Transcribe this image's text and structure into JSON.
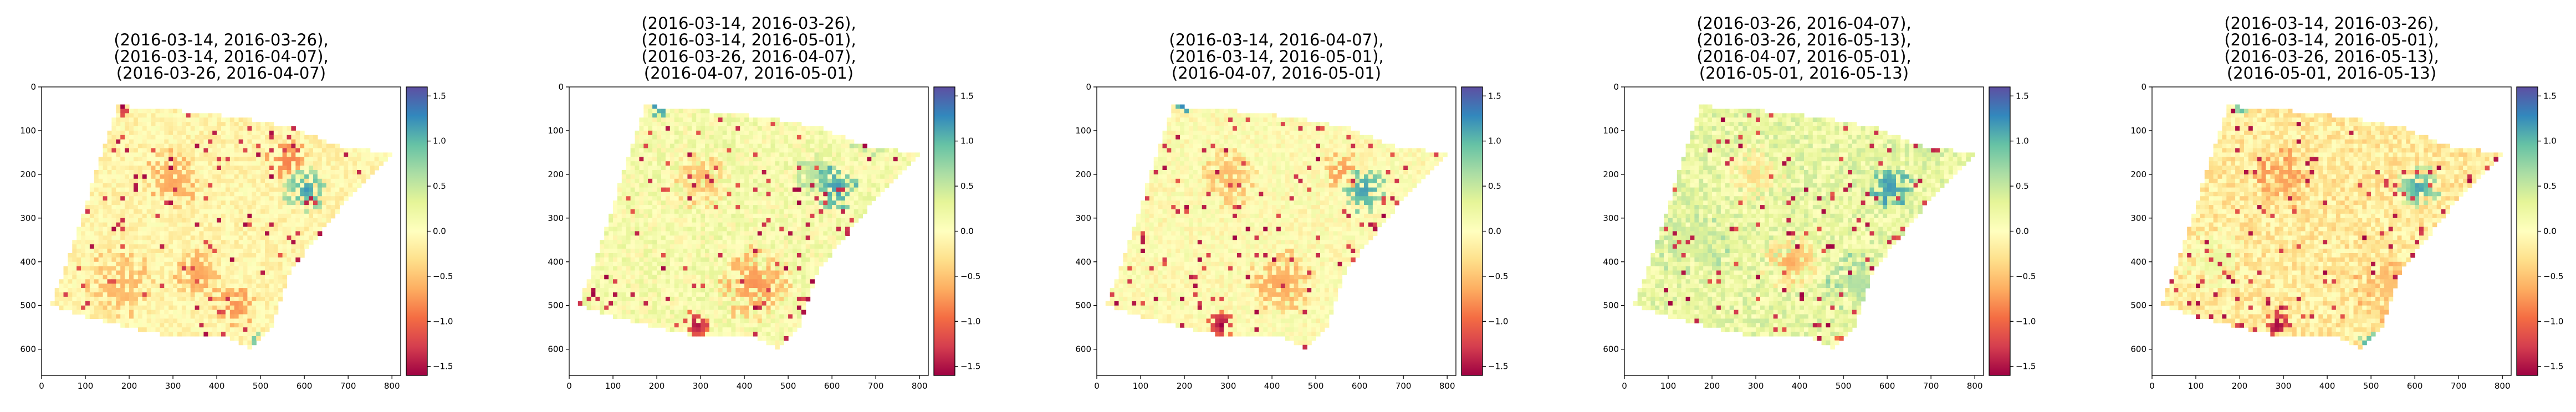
{
  "chart_data": [
    {
      "type": "heatmap",
      "title_lines": [
        "(2016-03-14, 2016-03-26),",
        "(2016-03-14, 2016-04-07),",
        "(2016-03-26, 2016-04-07)"
      ],
      "xlim": [
        0,
        820
      ],
      "ylim": [
        660,
        0
      ],
      "xticks": [
        0,
        100,
        200,
        300,
        400,
        500,
        600,
        700,
        800
      ],
      "yticks": [
        0,
        100,
        200,
        300,
        400,
        500,
        600
      ],
      "colorbar": {
        "cmap": "Spectral",
        "range": [
          -1.6,
          1.6
        ],
        "ticks": [
          -1.5,
          -1.0,
          -0.5,
          0.0,
          0.5,
          1.0,
          1.5
        ],
        "tick_labels": [
          "−1.5",
          "−1.0",
          "−0.5",
          "0.0",
          "0.5",
          "1.0",
          "1.5"
        ]
      },
      "dominant_value": -0.1,
      "noise": 0.18,
      "blobs": [
        {
          "x": 185,
          "y": 45,
          "r": 22,
          "value": -1.6
        },
        {
          "x": 605,
          "y": 235,
          "r": 55,
          "value": 1.2
        },
        {
          "x": 560,
          "y": 170,
          "r": 50,
          "value": -0.9
        },
        {
          "x": 300,
          "y": 210,
          "r": 70,
          "value": -0.7
        },
        {
          "x": 180,
          "y": 450,
          "r": 80,
          "value": -0.6
        },
        {
          "x": 360,
          "y": 430,
          "r": 60,
          "value": -0.7
        },
        {
          "x": 440,
          "y": 500,
          "r": 50,
          "value": -0.8
        },
        {
          "x": 490,
          "y": 580,
          "r": 20,
          "value": 1.0
        }
      ]
    },
    {
      "type": "heatmap",
      "title_lines": [
        "(2016-03-14, 2016-03-26),",
        "(2016-03-14, 2016-05-01),",
        "(2016-03-26, 2016-04-07),",
        "(2016-04-07, 2016-05-01)"
      ],
      "xlim": [
        0,
        820
      ],
      "ylim": [
        660,
        0
      ],
      "xticks": [
        0,
        100,
        200,
        300,
        400,
        500,
        600,
        700,
        800
      ],
      "yticks": [
        0,
        100,
        200,
        300,
        400,
        500,
        600
      ],
      "colorbar": {
        "cmap": "Spectral",
        "range": [
          -1.6,
          1.6
        ],
        "ticks": [
          -1.5,
          -1.0,
          -0.5,
          0.0,
          0.5,
          1.0,
          1.5
        ],
        "tick_labels": [
          "−1.5",
          "−1.0",
          "−0.5",
          "0.0",
          "0.5",
          "1.0",
          "1.5"
        ]
      },
      "dominant_value": 0.1,
      "noise": 0.25,
      "blobs": [
        {
          "x": 205,
          "y": 45,
          "r": 25,
          "value": 1.3
        },
        {
          "x": 610,
          "y": 230,
          "r": 55,
          "value": 1.2
        },
        {
          "x": 290,
          "y": 545,
          "r": 35,
          "value": -1.6
        },
        {
          "x": 420,
          "y": 450,
          "r": 90,
          "value": -0.8
        },
        {
          "x": 300,
          "y": 210,
          "r": 70,
          "value": -0.6
        },
        {
          "x": 560,
          "y": 200,
          "r": 50,
          "value": 0.6
        },
        {
          "x": 680,
          "y": 130,
          "r": 40,
          "value": 0.5
        }
      ]
    },
    {
      "type": "heatmap",
      "title_lines": [
        "(2016-03-14, 2016-04-07),",
        "(2016-03-14, 2016-05-01),",
        "(2016-04-07, 2016-05-01)"
      ],
      "xlim": [
        0,
        820
      ],
      "ylim": [
        660,
        0
      ],
      "xticks": [
        0,
        100,
        200,
        300,
        400,
        500,
        600,
        700,
        800
      ],
      "yticks": [
        0,
        100,
        200,
        300,
        400,
        500,
        600
      ],
      "colorbar": {
        "cmap": "Spectral",
        "range": [
          -1.6,
          1.6
        ],
        "ticks": [
          -1.5,
          -1.0,
          -0.5,
          0.0,
          0.5,
          1.0,
          1.5
        ],
        "tick_labels": [
          "−1.5",
          "−1.0",
          "−0.5",
          "0.0",
          "0.5",
          "1.0",
          "1.5"
        ]
      },
      "dominant_value": 0.0,
      "noise": 0.2,
      "blobs": [
        {
          "x": 200,
          "y": 45,
          "r": 25,
          "value": 1.4
        },
        {
          "x": 610,
          "y": 235,
          "r": 55,
          "value": 1.2
        },
        {
          "x": 285,
          "y": 545,
          "r": 35,
          "value": -1.6
        },
        {
          "x": 420,
          "y": 450,
          "r": 80,
          "value": -0.7
        },
        {
          "x": 300,
          "y": 210,
          "r": 70,
          "value": -0.6
        },
        {
          "x": 560,
          "y": 190,
          "r": 45,
          "value": -0.8
        }
      ]
    },
    {
      "type": "heatmap",
      "title_lines": [
        "(2016-03-26, 2016-04-07),",
        "(2016-03-26, 2016-05-13),",
        "(2016-04-07, 2016-05-01),",
        "(2016-05-01, 2016-05-13)"
      ],
      "xlim": [
        0,
        820
      ],
      "ylim": [
        660,
        0
      ],
      "xticks": [
        0,
        100,
        200,
        300,
        400,
        500,
        600,
        700,
        800
      ],
      "yticks": [
        0,
        100,
        200,
        300,
        400,
        500,
        600
      ],
      "colorbar": {
        "cmap": "Spectral",
        "range": [
          -1.6,
          1.6
        ],
        "ticks": [
          -1.5,
          -1.0,
          -0.5,
          0.0,
          0.5,
          1.0,
          1.5
        ],
        "tick_labels": [
          "−1.5",
          "−1.0",
          "−0.5",
          "0.0",
          "0.5",
          "1.0",
          "1.5"
        ]
      },
      "dominant_value": 0.25,
      "noise": 0.25,
      "blobs": [
        {
          "x": 530,
          "y": 450,
          "r": 70,
          "value": 0.6
        },
        {
          "x": 500,
          "y": 595,
          "r": 30,
          "value": -1.6
        },
        {
          "x": 610,
          "y": 230,
          "r": 50,
          "value": 1.2
        },
        {
          "x": 380,
          "y": 400,
          "r": 70,
          "value": -0.7
        },
        {
          "x": 300,
          "y": 200,
          "r": 70,
          "value": -0.4
        },
        {
          "x": 150,
          "y": 350,
          "r": 90,
          "value": 0.4
        },
        {
          "x": 700,
          "y": 130,
          "r": 40,
          "value": 0.5
        }
      ]
    },
    {
      "type": "heatmap",
      "title_lines": [
        "(2016-03-14, 2016-03-26),",
        "(2016-03-14, 2016-05-01),",
        "(2016-03-26, 2016-05-13),",
        "(2016-05-01, 2016-05-13)"
      ],
      "xlim": [
        0,
        820
      ],
      "ylim": [
        660,
        0
      ],
      "xticks": [
        0,
        100,
        200,
        300,
        400,
        500,
        600,
        700,
        800
      ],
      "yticks": [
        0,
        100,
        200,
        300,
        400,
        500,
        600
      ],
      "colorbar": {
        "cmap": "Spectral",
        "range": [
          -1.6,
          1.6
        ],
        "ticks": [
          -1.5,
          -1.0,
          -0.5,
          0.0,
          0.5,
          1.0,
          1.5
        ],
        "tick_labels": [
          "−1.5",
          "−1.0",
          "−0.5",
          "0.0",
          "0.5",
          "1.0",
          "1.5"
        ]
      },
      "dominant_value": -0.2,
      "noise": 0.25,
      "blobs": [
        {
          "x": 540,
          "y": 460,
          "r": 80,
          "value": -0.5
        },
        {
          "x": 290,
          "y": 545,
          "r": 35,
          "value": -1.6
        },
        {
          "x": 500,
          "y": 590,
          "r": 30,
          "value": 1.4
        },
        {
          "x": 610,
          "y": 230,
          "r": 55,
          "value": 1.2
        },
        {
          "x": 205,
          "y": 45,
          "r": 20,
          "value": 1.3
        },
        {
          "x": 300,
          "y": 210,
          "r": 70,
          "value": -0.7
        },
        {
          "x": 150,
          "y": 400,
          "r": 80,
          "value": 0.3
        }
      ]
    }
  ]
}
